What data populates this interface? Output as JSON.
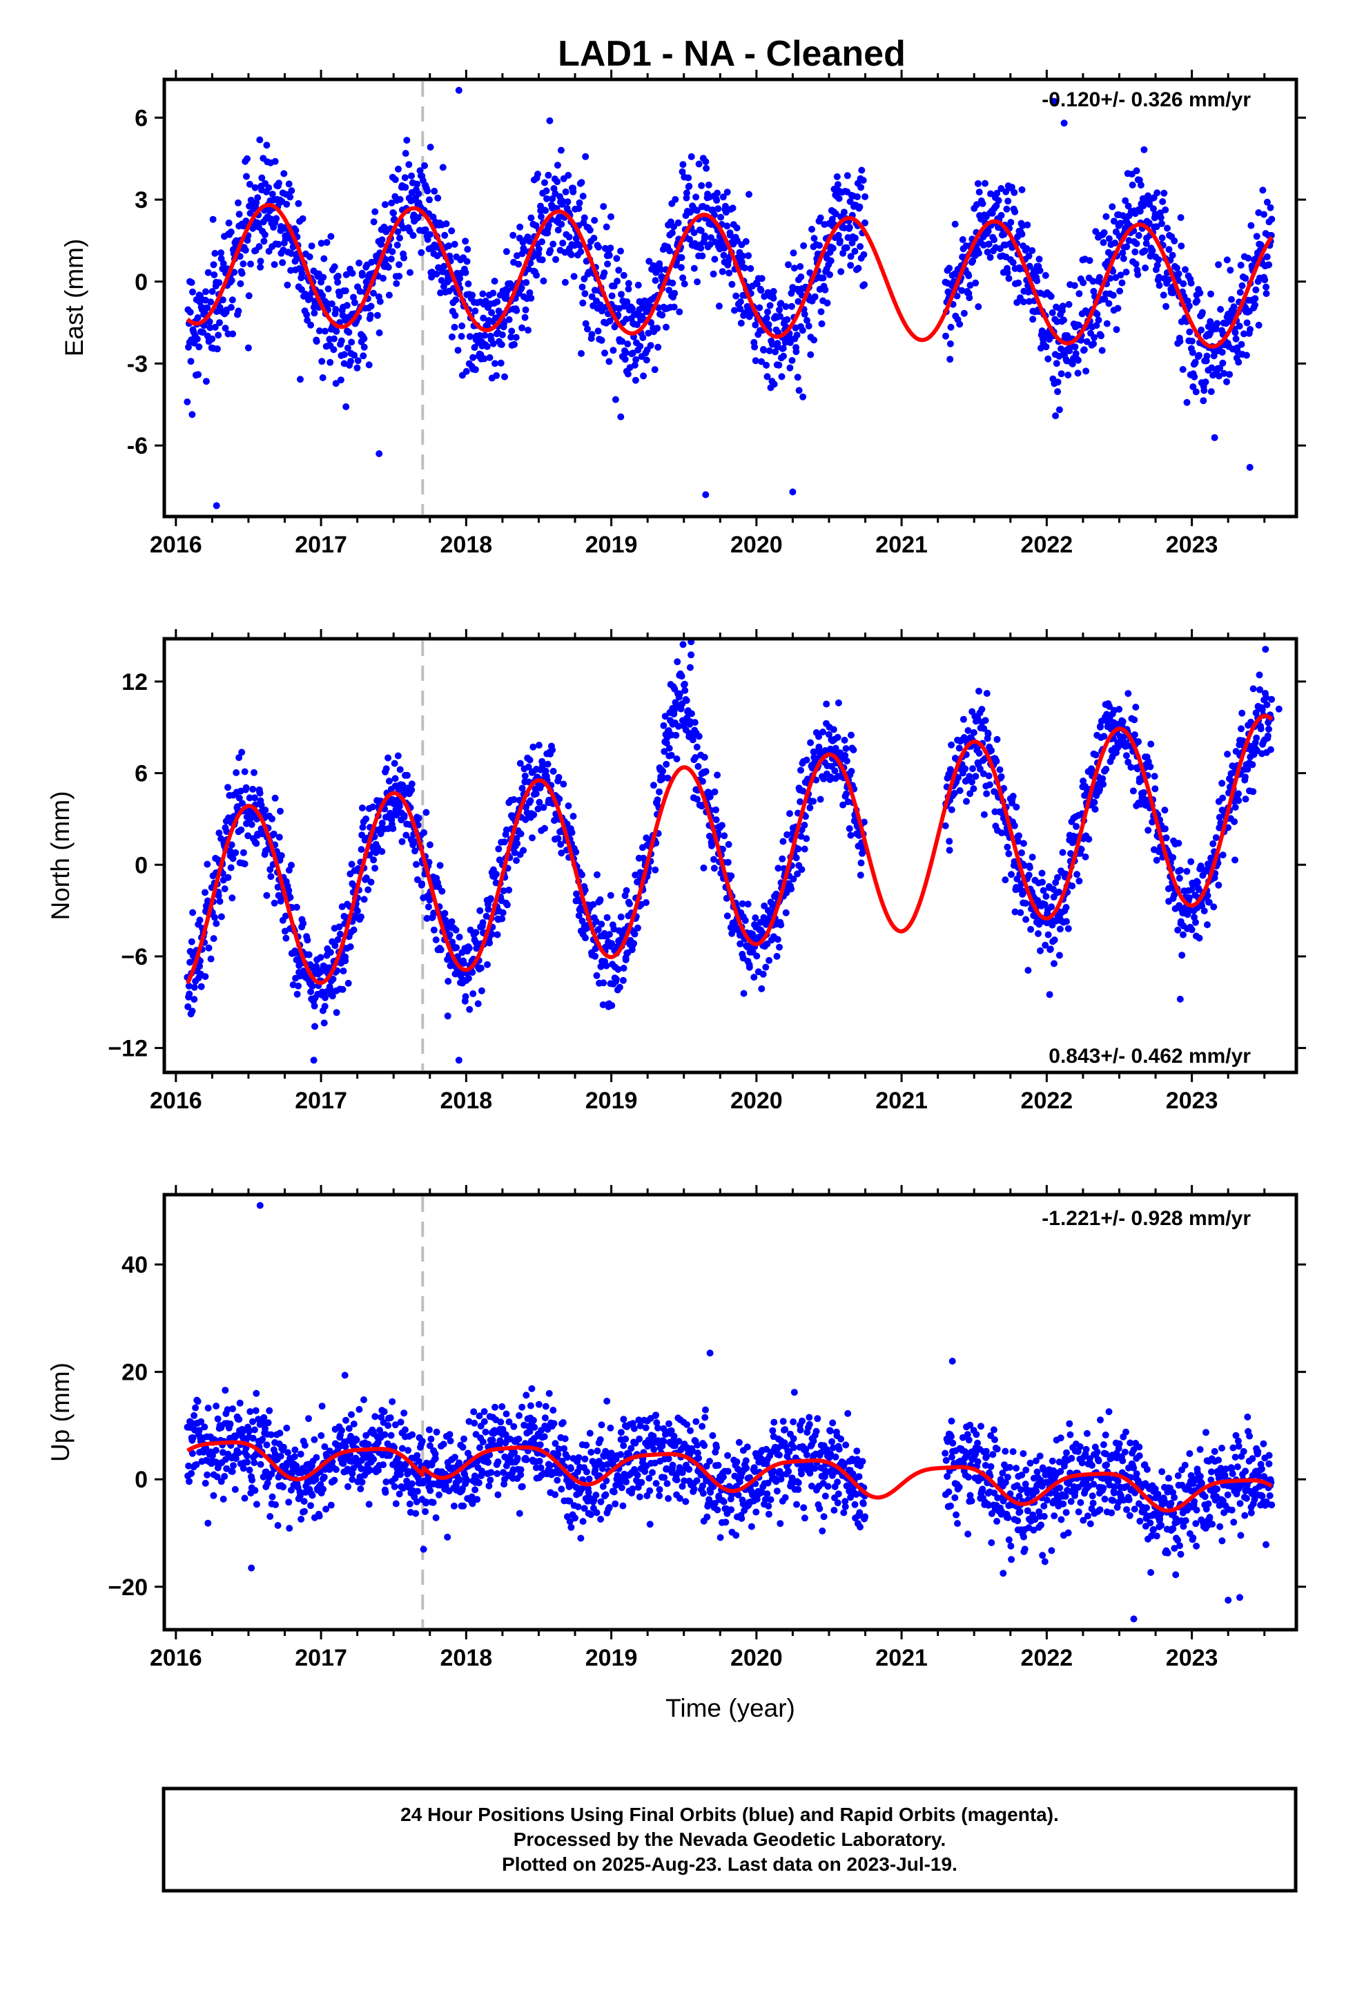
{
  "title": "LAD1  - NA - Cleaned",
  "colors": {
    "final_orbits": "#0000ff",
    "model": "#ff0000",
    "event_line": "#bfbfbf"
  },
  "caption": [
    "24 Hour Positions Using Final Orbits (blue) and Rapid Orbits (magenta).",
    "Processed by the Nevada Geodetic Laboratory.",
    "Plotted on 2025-Aug-23. Last data on 2023-Jul-19."
  ],
  "chart_data": [
    {
      "type": "scatter",
      "component": "east",
      "ylabel": "East (mm)",
      "xlim": [
        2015.92,
        2023.72
      ],
      "ylim": [
        -8.6,
        7.4
      ],
      "xticks": [
        "2016",
        "2017",
        "2018",
        "2019",
        "2020",
        "2021",
        "2022",
        "2023"
      ],
      "yticks": [
        "6",
        "3",
        "0",
        "-3",
        "-6"
      ],
      "ytick_values": [
        6,
        3,
        0,
        -3,
        -6
      ],
      "rate_label": "-0.120+/- 0.326 mm/yr",
      "rate_label_position": "top-right",
      "event_line_x": 2017.7,
      "data_start": 2016.08,
      "data_end": 2023.55,
      "gaps": [
        [
          2020.75,
          2021.3
        ]
      ],
      "model": {
        "offset": 0.2,
        "trend_mm_per_yr": -0.12,
        "annual_cos": -1.4,
        "annual_sin": -1.7,
        "semiannual_cos": 0.0,
        "semiannual_sin": 0.0,
        "ref_year": 2020.0
      },
      "noise_mm": 1.1,
      "outliers": [
        [
          2016.28,
          -8.2
        ],
        [
          2017.4,
          -6.3
        ],
        [
          2017.95,
          7.0
        ],
        [
          2019.65,
          -7.8
        ],
        [
          2020.25,
          -7.7
        ],
        [
          2022.05,
          6.6
        ],
        [
          2022.12,
          5.8
        ],
        [
          2023.4,
          -6.8
        ]
      ],
      "point_count": 2300
    },
    {
      "type": "scatter",
      "component": "north",
      "ylabel": "North (mm)",
      "xlim": [
        2015.92,
        2023.72
      ],
      "ylim": [
        -13.6,
        14.8
      ],
      "xticks": [
        "2016",
        "2017",
        "2018",
        "2019",
        "2020",
        "2021",
        "2022",
        "2023"
      ],
      "yticks": [
        "12",
        "6",
        "0",
        "−6",
        "−12"
      ],
      "ytick_values": [
        12,
        6,
        0,
        -6,
        -12
      ],
      "rate_label": "0.843+/- 0.462 mm/yr",
      "rate_label_position": "bottom-right",
      "event_line_x": 2017.7,
      "data_start": 2016.08,
      "data_end": 2023.55,
      "gaps": [
        [
          2020.75,
          2021.3
        ]
      ],
      "model": {
        "offset": 0.8,
        "trend_mm_per_yr": 0.843,
        "annual_cos": -6.0,
        "annual_sin": 0.0,
        "semiannual_cos": 0.0,
        "semiannual_sin": 0.0,
        "ref_year": 2020.0
      },
      "noise_mm": 1.5,
      "anomalies": [
        [
          2019.3,
          2019.62,
          4.5
        ]
      ],
      "outliers": [
        [
          2016.95,
          -12.8
        ],
        [
          2017.95,
          -12.8
        ],
        [
          2019.55,
          14.6
        ],
        [
          2022.02,
          -8.5
        ],
        [
          2022.92,
          -8.8
        ],
        [
          2023.6,
          10.2
        ]
      ],
      "point_count": 2300
    },
    {
      "type": "scatter",
      "component": "up",
      "ylabel": "Up (mm)",
      "xlabel": "Time (year)",
      "xlim": [
        2015.92,
        2023.72
      ],
      "ylim": [
        -28,
        53
      ],
      "xticks": [
        "2016",
        "2017",
        "2018",
        "2019",
        "2020",
        "2021",
        "2022",
        "2023"
      ],
      "yticks": [
        "40",
        "20",
        "0",
        "−20"
      ],
      "ytick_values": [
        40,
        20,
        0,
        -20
      ],
      "rate_label": "-1.221+/- 0.928 mm/yr",
      "rate_label_position": "top-right",
      "event_line_x": 2017.7,
      "data_start": 2016.08,
      "data_end": 2023.55,
      "gaps": [
        [
          2020.75,
          2021.3
        ]
      ],
      "model": {
        "offset": 0.0,
        "trend_mm_per_yr": -1.221,
        "annual_cos": -1.7,
        "annual_sin": 2.6,
        "semiannual_cos": 0.5,
        "semiannual_sin": 0.6,
        "ref_year": 2020.0
      },
      "noise_mm": 4.2,
      "step": [
        2017.7,
        1.5
      ],
      "outliers": [
        [
          2016.58,
          51.0
        ],
        [
          2016.52,
          -16.5
        ],
        [
          2019.68,
          23.5
        ],
        [
          2021.35,
          22.0
        ],
        [
          2021.7,
          -17.5
        ],
        [
          2022.6,
          -26.0
        ],
        [
          2023.25,
          -22.5
        ],
        [
          2023.33,
          -22.0
        ]
      ],
      "point_count": 2300
    }
  ]
}
